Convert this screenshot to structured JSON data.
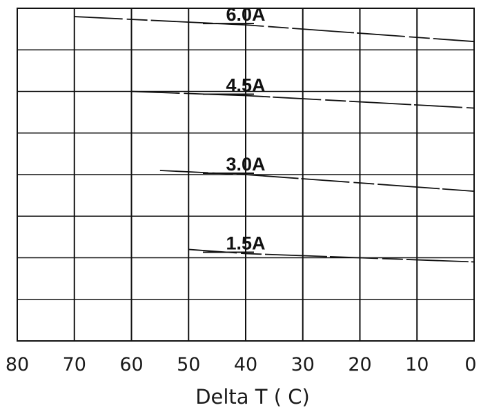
{
  "chart_data": {
    "type": "line",
    "xlabel": "Delta T ( C)",
    "ylabel": "",
    "xlim": [
      80,
      0
    ],
    "ylim": [
      0,
      8
    ],
    "grid": true,
    "x_ticks": [
      80,
      70,
      60,
      50,
      40,
      30,
      20,
      10,
      0
    ],
    "x_tick_labels": [
      "80",
      "70",
      "60",
      "50",
      "40",
      "30",
      "20",
      "10",
      "0"
    ],
    "series": [
      {
        "name": "6.0A",
        "x": [
          70,
          40,
          0
        ],
        "y": [
          7.8,
          7.6,
          7.2
        ]
      },
      {
        "name": "4.5A",
        "x": [
          60,
          40,
          0
        ],
        "y": [
          6.0,
          5.9,
          5.6
        ]
      },
      {
        "name": "3.0A",
        "x": [
          55,
          40,
          0
        ],
        "y": [
          4.1,
          4.0,
          3.6
        ]
      },
      {
        "name": "1.5A",
        "x": [
          50,
          40,
          0
        ],
        "y": [
          2.2,
          2.1,
          1.9
        ]
      }
    ]
  }
}
